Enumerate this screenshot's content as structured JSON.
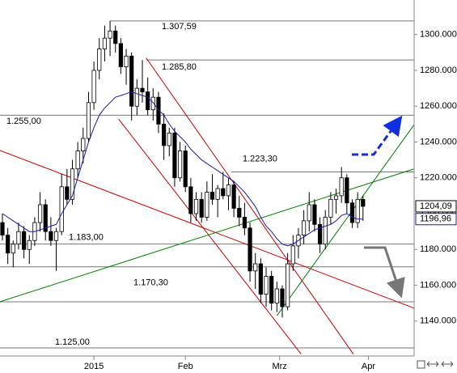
{
  "chart_data": {
    "type": "candlestick",
    "open": [
      1195,
      1188,
      1178,
      1183,
      1190,
      1180,
      1185,
      1195,
      1205,
      1190,
      1185,
      1190,
      1215,
      1208,
      1225,
      1235,
      1242,
      1262,
      1280,
      1292,
      1298,
      1302,
      1295,
      1282,
      1288,
      1260,
      1270,
      1268,
      1258,
      1265,
      1250,
      1238,
      1245,
      1220,
      1235,
      1215,
      1200,
      1208,
      1198,
      1212,
      1208,
      1214,
      1210,
      1216,
      1203,
      1198,
      1192,
      1168,
      1172,
      1155,
      1165,
      1150,
      1158,
      1148,
      1172,
      1182,
      1188,
      1196,
      1205,
      1194,
      1183,
      1198,
      1208,
      1210,
      1220,
      1206,
      1195,
      1208
    ],
    "high": [
      1200,
      1192,
      1185,
      1195,
      1193,
      1188,
      1198,
      1212,
      1208,
      1198,
      1192,
      1222,
      1225,
      1230,
      1240,
      1248,
      1268,
      1285,
      1298,
      1305,
      1307.59,
      1305,
      1298,
      1292,
      1290,
      1275,
      1285.8,
      1276,
      1270,
      1268,
      1256,
      1248,
      1248,
      1240,
      1238,
      1220,
      1212,
      1212,
      1218,
      1222,
      1216,
      1223.3,
      1220,
      1218,
      1210,
      1206,
      1195,
      1178,
      1175,
      1170,
      1168,
      1162,
      1160,
      1178,
      1188,
      1192,
      1202,
      1212,
      1208,
      1198,
      1202,
      1212,
      1214,
      1226,
      1222,
      1208,
      1212,
      1210
    ],
    "low": [
      1185,
      1172,
      1170,
      1180,
      1175,
      1172,
      1182,
      1190,
      1185,
      1182,
      1168,
      1188,
      1205,
      1205,
      1220,
      1228,
      1240,
      1258,
      1275,
      1285,
      1288,
      1290,
      1278,
      1272,
      1252,
      1255,
      1262,
      1255,
      1252,
      1245,
      1230,
      1232,
      1215,
      1218,
      1212,
      1195,
      1196,
      1195,
      1196,
      1205,
      1198,
      1208,
      1202,
      1198,
      1193,
      1188,
      1162,
      1158,
      1150,
      1148,
      1146,
      1145,
      1142,
      1146,
      1168,
      1175,
      1183,
      1190,
      1190,
      1178,
      1180,
      1194,
      1200,
      1206,
      1200,
      1192,
      1192,
      1196
    ],
    "close": [
      1188,
      1178,
      1183,
      1190,
      1180,
      1185,
      1195,
      1205,
      1190,
      1185,
      1190,
      1215,
      1208,
      1225,
      1235,
      1242,
      1262,
      1280,
      1292,
      1298,
      1302,
      1295,
      1282,
      1288,
      1260,
      1270,
      1268,
      1258,
      1265,
      1250,
      1238,
      1245,
      1220,
      1235,
      1215,
      1200,
      1208,
      1198,
      1212,
      1208,
      1214,
      1210,
      1216,
      1203,
      1198,
      1192,
      1168,
      1172,
      1155,
      1165,
      1150,
      1158,
      1148,
      1172,
      1182,
      1188,
      1196,
      1205,
      1194,
      1183,
      1198,
      1208,
      1210,
      1220,
      1206,
      1195,
      1208,
      1204.09
    ],
    "moving_average": {
      "color": "#1a1aaa",
      "values": [
        1200,
        1198,
        1196,
        1194,
        1192,
        1190,
        1190,
        1191,
        1192,
        1193,
        1194,
        1200,
        1205,
        1210,
        1220,
        1230,
        1240,
        1248,
        1255,
        1259,
        1262,
        1265,
        1266,
        1267,
        1268,
        1267,
        1266,
        1265,
        1262,
        1258,
        1255,
        1250,
        1246,
        1243,
        1240,
        1236,
        1233,
        1230,
        1228,
        1226,
        1224,
        1222,
        1220,
        1218,
        1215,
        1212,
        1208,
        1204,
        1198,
        1193,
        1190,
        1186,
        1183,
        1182,
        1183,
        1185,
        1187,
        1189,
        1191,
        1192,
        1193,
        1194,
        1196,
        1199,
        1200,
        1198,
        1197,
        1196.96
      ]
    },
    "xlim": [
      -0.45,
      76.5
    ],
    "ylim": [
      1120.5,
      1319.3
    ],
    "xticks": [
      {
        "value": 17,
        "label": "2015"
      },
      {
        "value": 34,
        "label": "Feb"
      },
      {
        "value": 51.5,
        "label": "Mrz"
      },
      {
        "value": 68,
        "label": "Apr"
      }
    ],
    "yticks": [
      {
        "value": 1140,
        "label": "1140.000"
      },
      {
        "value": 1160,
        "label": "1160.000"
      },
      {
        "value": 1180,
        "label": "1180.000"
      },
      {
        "value": 1200,
        "label": "1200.000"
      },
      {
        "value": 1220,
        "label": "1220.000"
      },
      {
        "value": 1240,
        "label": "1240.000"
      },
      {
        "value": 1260,
        "label": "1260.000"
      },
      {
        "value": 1280,
        "label": "1280.000"
      },
      {
        "value": 1300,
        "label": "1300.000"
      }
    ],
    "levels": [
      {
        "value": 1307.59,
        "label": "1.307,59",
        "start": 20
      },
      {
        "value": 1285.8,
        "label": "1.285,80",
        "start": 26.7
      },
      {
        "value": 1255,
        "label": "1.255,00"
      },
      {
        "value": 1223.3,
        "label": "1.223,30",
        "start": 42.5
      },
      {
        "value": 1183,
        "label": "1.183,00"
      },
      {
        "value": 1170.3,
        "label": "1.170,30"
      },
      {
        "value": 1150.8
      },
      {
        "value": 1125,
        "label": "1.125,00"
      }
    ],
    "trendlines": [
      {
        "color": "#cc0000",
        "x": [
          -0.45,
          76.5
        ],
        "y": [
          1235.3,
          1147.2
        ]
      },
      {
        "color": "#cc0000",
        "x": [
          26.7,
          65.2
        ],
        "y": [
          1287,
          1121.6
        ]
      },
      {
        "color": "#cc0000",
        "x": [
          21.6,
          55.5
        ],
        "y": [
          1252.8,
          1121.6
        ]
      },
      {
        "color": "#008000",
        "x": [
          -0.45,
          76.5
        ],
        "y": [
          1150.8,
          1225
        ]
      },
      {
        "color": "#008000",
        "x": [
          51,
          76.5
        ],
        "y": [
          1143,
          1249.7
        ]
      }
    ],
    "price_labels": [
      {
        "value": 1204.09,
        "label": "1204,09",
        "color": "#000000"
      },
      {
        "value": 1196.96,
        "label": "1196,96",
        "color": "#1a1aaa"
      }
    ]
  }
}
